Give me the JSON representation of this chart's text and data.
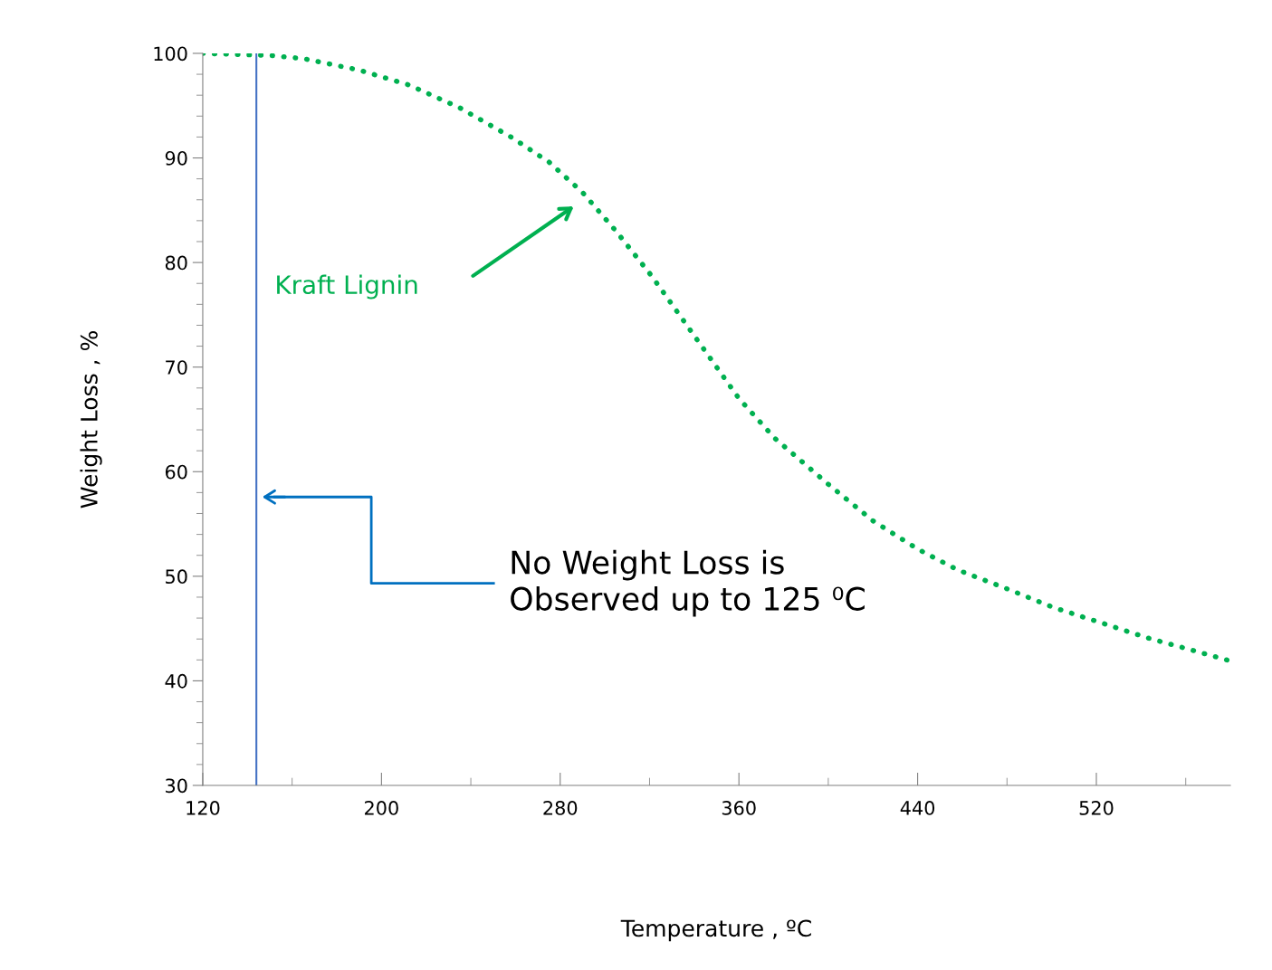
{
  "chart_data": {
    "type": "line",
    "xlabel": "Temperature , ºC",
    "ylabel": "Weight Loss , %",
    "x": [
      120,
      150,
      165,
      190,
      212,
      235,
      258,
      275,
      290,
      305,
      321,
      340,
      360,
      376,
      400,
      420,
      440,
      458,
      480,
      501,
      520,
      543,
      560,
      580
    ],
    "series": [
      {
        "color": "#00b050",
        "line_style": "dotted",
        "values": [
          100,
          99.8,
          99.5,
          98.4,
          97.0,
          94.8,
          92.0,
          89.6,
          86.7,
          83.0,
          78.7,
          73.0,
          67.0,
          63.2,
          58.8,
          55.3,
          52.6,
          50.6,
          48.8,
          47.0,
          45.7,
          44.1,
          43.1,
          41.9
        ]
      }
    ],
    "xlim": [
      120,
      580
    ],
    "xticks": [
      120,
      200,
      280,
      360,
      440,
      520
    ],
    "ylim": [
      30,
      100
    ],
    "yticks": [
      30,
      40,
      50,
      60,
      70,
      80,
      90,
      100
    ],
    "ref_lines": [
      {
        "axis": "x",
        "value": 144,
        "color": "#4472c4"
      }
    ],
    "annotations": [
      "Kraft Lignin",
      "No Weight Loss is\nObserved up to 125 ⁰C"
    ],
    "grid": false,
    "legend": false
  }
}
